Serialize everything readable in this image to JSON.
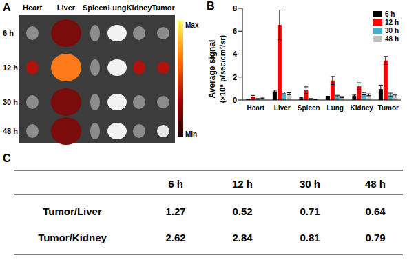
{
  "image_panel": {
    "label": "A",
    "columns": [
      "Heart",
      "Liver",
      "Spleen",
      "Lung",
      "Kidney",
      "Tumor"
    ],
    "rows": [
      "6 h",
      "12 h",
      "30 h",
      "48 h"
    ],
    "colorbar": {
      "max_label": "Max",
      "min_label": "Min"
    }
  },
  "chart_label": "B",
  "chart_data": {
    "type": "bar",
    "y_label": [
      "Average signal",
      "(×10⁸ p/sec/cm²/sr)"
    ],
    "categories": [
      "Heart",
      "Liver",
      "Spleen",
      "Lung",
      "Kidney",
      "Tumor"
    ],
    "series": [
      {
        "name": "6 h",
        "color": "#000000",
        "values": [
          0.05,
          0.75,
          0.15,
          0.25,
          0.35,
          0.95
        ],
        "errors": [
          0.02,
          0.1,
          0.05,
          0.08,
          0.08,
          0.35
        ]
      },
      {
        "name": "12 h",
        "color": "#ff0000",
        "values": [
          0.3,
          6.55,
          0.85,
          1.7,
          1.2,
          3.45
        ],
        "errors": [
          0.1,
          1.3,
          0.3,
          0.35,
          0.3,
          0.35
        ]
      },
      {
        "name": "30 h",
        "color": "#4bacc6",
        "values": [
          0.1,
          0.6,
          0.1,
          0.35,
          0.55,
          0.45
        ],
        "errors": [
          0.03,
          0.08,
          0.03,
          0.06,
          0.1,
          0.15
        ]
      },
      {
        "name": "48 h",
        "color": "#bfbfbf",
        "values": [
          0.15,
          0.55,
          0.05,
          0.25,
          0.45,
          0.35
        ],
        "errors": [
          0.03,
          0.08,
          0.02,
          0.05,
          0.08,
          0.08
        ]
      }
    ],
    "ylim": [
      0,
      8
    ],
    "yticks": [
      0,
      2,
      4,
      6,
      8
    ],
    "grid": false,
    "legend": "upper right"
  },
  "table_label": "C",
  "table": {
    "header": [
      "",
      "6 h",
      "12 h",
      "30 h",
      "48 h"
    ],
    "rows": [
      [
        "Tumor/Liver",
        1.27,
        0.52,
        0.71,
        0.64
      ],
      [
        "Tumor/Kidney",
        2.62,
        2.84,
        0.81,
        0.79
      ]
    ]
  }
}
